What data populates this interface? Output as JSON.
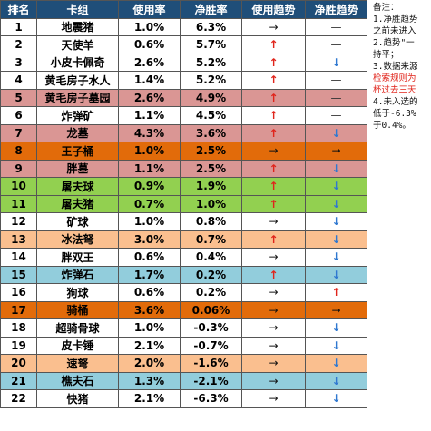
{
  "headers": {
    "rank": "排名",
    "deck": "卡组",
    "use": "使用率",
    "win": "净胜率",
    "use_trend": "使用趋势",
    "win_trend": "净胜趋势"
  },
  "notes": [
    {
      "text": "备注：",
      "red": false
    },
    {
      "text": "1.净胜趋势",
      "red": false
    },
    {
      "text": "之前未进入",
      "red": false
    },
    {
      "text": "2.趋势\"一",
      "red": false
    },
    {
      "text": "持平；",
      "red": false
    },
    {
      "text": "3.数据来源",
      "red": false
    },
    {
      "text": "检索规则为",
      "red": true
    },
    {
      "text": "杯过去三天",
      "red": true
    },
    {
      "text": "4.未入选的",
      "red": false
    },
    {
      "text": "低于-6.3%",
      "red": false
    },
    {
      "text": "于0.4%。",
      "red": false
    }
  ],
  "rows": [
    {
      "rank": "1",
      "name": "地震猪",
      "use": "1.0%",
      "win": "6.3%",
      "use_trend": "→",
      "win_trend": "—",
      "bg": "#ffffff"
    },
    {
      "rank": "2",
      "name": "天使羊",
      "use": "0.6%",
      "win": "5.7%",
      "use_trend": "↑",
      "win_trend": "—",
      "bg": "#ffffff"
    },
    {
      "rank": "3",
      "name": "小皮卡佩奇",
      "use": "2.6%",
      "win": "5.2%",
      "use_trend": "↑",
      "win_trend": "↓",
      "bg": "#ffffff"
    },
    {
      "rank": "4",
      "name": "黄毛房子水人",
      "use": "1.4%",
      "win": "5.2%",
      "use_trend": "↑",
      "win_trend": "—",
      "bg": "#ffffff"
    },
    {
      "rank": "5",
      "name": "黄毛房子墓园",
      "use": "2.6%",
      "win": "4.9%",
      "use_trend": "↑",
      "win_trend": "—",
      "bg": "#da9694"
    },
    {
      "rank": "6",
      "name": "炸弹矿",
      "use": "1.1%",
      "win": "4.5%",
      "use_trend": "↑",
      "win_trend": "—",
      "bg": "#ffffff"
    },
    {
      "rank": "7",
      "name": "龙墓",
      "use": "4.3%",
      "win": "3.6%",
      "use_trend": "↑",
      "win_trend": "↓",
      "bg": "#da9694"
    },
    {
      "rank": "8",
      "name": "王子桶",
      "use": "1.0%",
      "win": "2.5%",
      "use_trend": "→",
      "win_trend": "→",
      "bg": "#e26b0a"
    },
    {
      "rank": "9",
      "name": "胖墓",
      "use": "1.1%",
      "win": "2.5%",
      "use_trend": "↑",
      "win_trend": "↓",
      "bg": "#da9694"
    },
    {
      "rank": "10",
      "name": "屠夫球",
      "use": "0.9%",
      "win": "1.9%",
      "use_trend": "↑",
      "win_trend": "↓",
      "bg": "#92d050"
    },
    {
      "rank": "11",
      "name": "屠夫猪",
      "use": "0.7%",
      "win": "1.0%",
      "use_trend": "↑",
      "win_trend": "↓",
      "bg": "#92d050"
    },
    {
      "rank": "12",
      "name": "矿球",
      "use": "1.0%",
      "win": "0.8%",
      "use_trend": "→",
      "win_trend": "↓",
      "bg": "#ffffff"
    },
    {
      "rank": "13",
      "name": "冰法弩",
      "use": "3.0%",
      "win": "0.7%",
      "use_trend": "↑",
      "win_trend": "↓",
      "bg": "#fabf8f"
    },
    {
      "rank": "14",
      "name": "胖双王",
      "use": "0.6%",
      "win": "0.4%",
      "use_trend": "→",
      "win_trend": "↓",
      "bg": "#ffffff"
    },
    {
      "rank": "15",
      "name": "炸弹石",
      "use": "1.7%",
      "win": "0.2%",
      "use_trend": "↑",
      "win_trend": "↓",
      "bg": "#92cddc"
    },
    {
      "rank": "16",
      "name": "狗球",
      "use": "0.6%",
      "win": "0.2%",
      "use_trend": "→",
      "win_trend": "↑",
      "bg": "#ffffff"
    },
    {
      "rank": "17",
      "name": "骑桶",
      "use": "3.6%",
      "win": "0.06%",
      "use_trend": "→",
      "win_trend": "→",
      "bg": "#e26b0a"
    },
    {
      "rank": "18",
      "name": "超骑骨球",
      "use": "1.0%",
      "win": "-0.3%",
      "use_trend": "→",
      "win_trend": "↓",
      "bg": "#ffffff"
    },
    {
      "rank": "19",
      "name": "皮卡锤",
      "use": "2.1%",
      "win": "-0.7%",
      "use_trend": "→",
      "win_trend": "↓",
      "bg": "#ffffff"
    },
    {
      "rank": "20",
      "name": "速弩",
      "use": "2.0%",
      "win": "-1.6%",
      "use_trend": "→",
      "win_trend": "↓",
      "bg": "#fabf8f"
    },
    {
      "rank": "21",
      "name": "樵夫石",
      "use": "1.3%",
      "win": "-2.1%",
      "use_trend": "→",
      "win_trend": "↓",
      "bg": "#92cddc"
    },
    {
      "rank": "22",
      "name": "快猪",
      "use": "2.1%",
      "win": "-6.3%",
      "use_trend": "→",
      "win_trend": "↓",
      "bg": "#ffffff"
    }
  ]
}
